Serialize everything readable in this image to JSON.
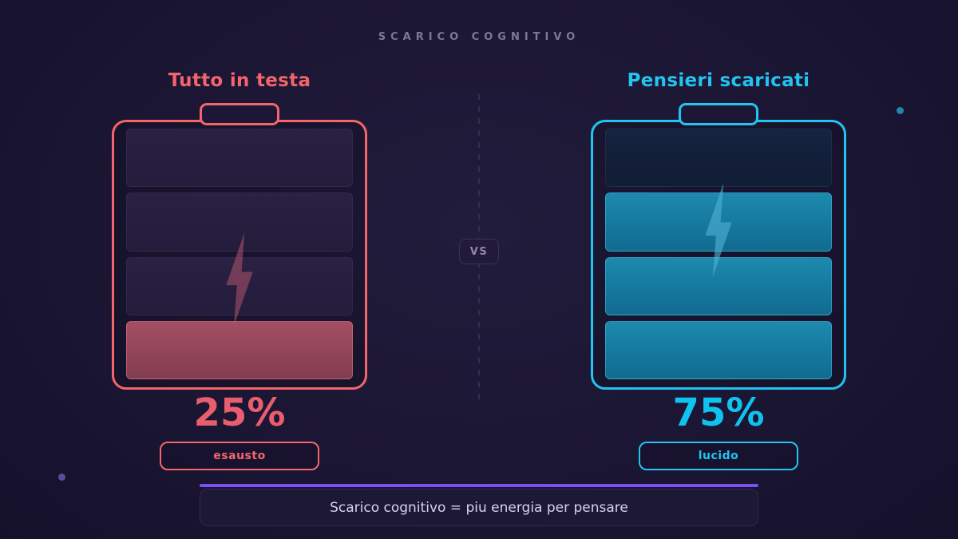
{
  "page": {
    "title": "SCARICO COGNITIVO",
    "vs_label": "VS",
    "footer_text": "Scarico cognitivo = piu energia per pensare"
  },
  "chart_data": {
    "type": "bar",
    "subtype": "battery-gauge-comparison",
    "title": "SCARICO COGNITIVO",
    "categories": [
      "Tutto in testa",
      "Pensieri scaricati"
    ],
    "values": [
      25,
      75
    ],
    "unit": "%",
    "value_labels": [
      "25%",
      "75%"
    ],
    "status_labels": [
      "esausto",
      "lucido"
    ],
    "segments_total": 4,
    "segments_filled": [
      1,
      3
    ],
    "annotation": "Scarico cognitivo = piu energia per pensare"
  },
  "batteries": [
    {
      "title": "Tutto in testa",
      "percent_label": "25%",
      "value": 25,
      "status": "esausto",
      "segments_total": 4,
      "segments_filled": 1,
      "colors": {
        "accent": "#f4656b",
        "percent": "#e95e6e",
        "fill_top": "#a44f63",
        "fill_bottom": "#833c50",
        "fill_edge": "rgba(255,135,145,0.40)",
        "empty_top": "#2a2144",
        "empty_bottom": "#241c3a",
        "empty_edge": "rgba(150,130,190,0.10)",
        "bolt": "rgba(190,90,112,0.50)"
      }
    },
    {
      "title": "Pensieri scaricati",
      "percent_label": "75%",
      "value": 75,
      "status": "lucido",
      "segments_total": 4,
      "segments_filled": 3,
      "colors": {
        "accent": "#22c4f1",
        "percent": "#10c2f0",
        "fill_top": "#1d89ae",
        "fill_bottom": "#116b90",
        "fill_edge": "rgba(80,200,235,0.45)",
        "empty_top": "#16233f",
        "empty_bottom": "#111c35",
        "empty_edge": "rgba(120,160,220,0.10)",
        "bolt": "rgba(80,180,212,0.60)"
      }
    }
  ],
  "colors": {
    "bg_center": "#221c3c",
    "bg_edge": "#14102a",
    "title_color": "#7d7894",
    "divider": "#332e55",
    "vs_bg": "#211b39",
    "vs_border": "#393259",
    "vs_text": "#8e89ac",
    "footer_line": "#7c4ef9",
    "footer_bg": "#1d1836",
    "footer_border": "#2f2a52",
    "footer_text": "#d7d2ec",
    "dot_left": "#5a4c9e",
    "dot_right": "#1f86aa"
  }
}
